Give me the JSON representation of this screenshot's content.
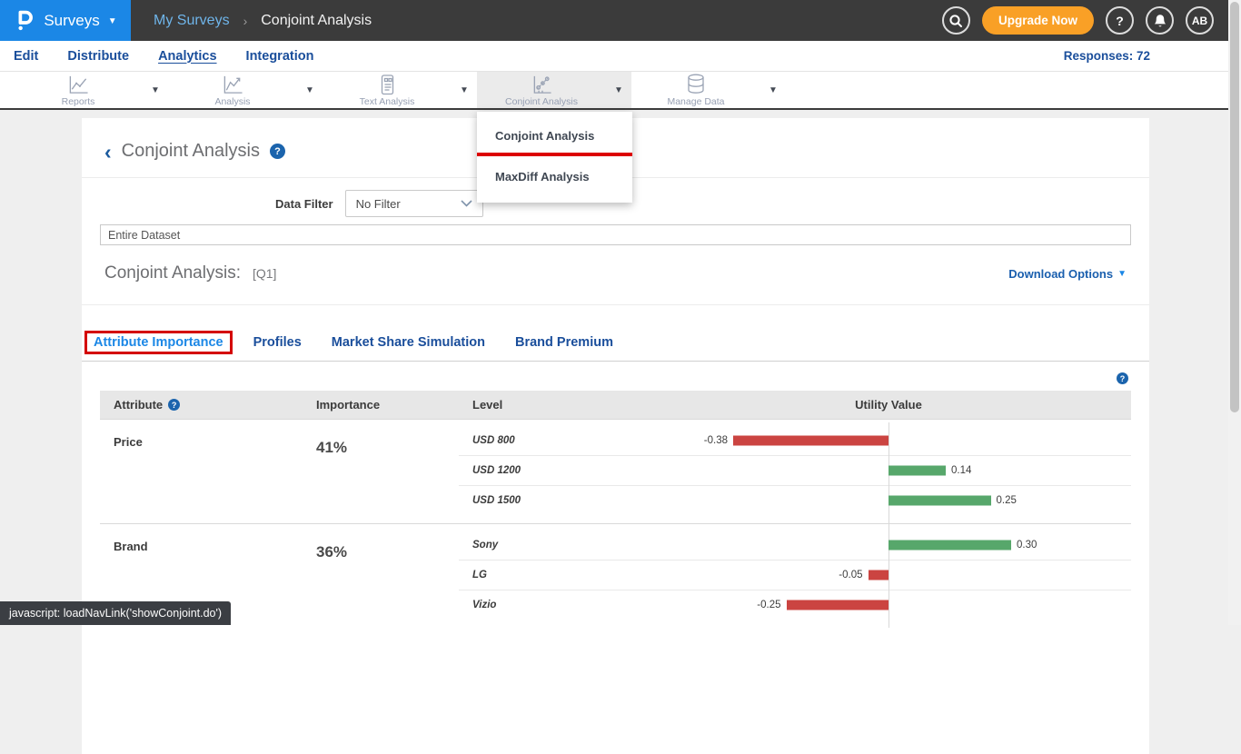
{
  "topbar": {
    "product": "Surveys",
    "breadcrumb": {
      "parent": "My Surveys",
      "separator": "›",
      "current": "Conjoint Analysis"
    },
    "upgrade_label": "Upgrade Now",
    "help_label": "?",
    "avatar": "AB"
  },
  "nav": {
    "items": [
      {
        "label": "Edit"
      },
      {
        "label": "Distribute"
      },
      {
        "label": "Analytics"
      },
      {
        "label": "Integration"
      }
    ],
    "active": "Analytics",
    "responses": "Responses: 72"
  },
  "toolbar": {
    "items": [
      {
        "label": "Reports",
        "icon": "line-chart-icon"
      },
      {
        "label": "Analysis",
        "icon": "trend-chart-icon"
      },
      {
        "label": "Text Analysis",
        "icon": "text-document-icon"
      },
      {
        "label": "Conjoint Analysis",
        "icon": "scatter-chart-icon",
        "active": true
      },
      {
        "label": "Manage Data",
        "icon": "database-icon"
      }
    ]
  },
  "dropdown": {
    "items": [
      {
        "label": "Conjoint Analysis",
        "annotated": true
      },
      {
        "label": "MaxDiff Analysis"
      }
    ]
  },
  "page": {
    "back_chevron": "‹",
    "title": "Conjoint Analysis",
    "filter_label": "Data Filter",
    "filter_value": "No Filter",
    "dataset_value": "Entire Dataset",
    "section_title": "Conjoint Analysis:",
    "section_ref": "[Q1]",
    "download_label": "Download Options",
    "tabs": [
      {
        "label": "Attribute Importance",
        "active": true,
        "annotated": true
      },
      {
        "label": "Profiles"
      },
      {
        "label": "Market Share Simulation"
      },
      {
        "label": "Brand Premium"
      }
    ]
  },
  "table": {
    "headers": {
      "attribute": "Attribute",
      "importance": "Importance",
      "level": "Level",
      "utility": "Utility Value"
    },
    "groups": [
      {
        "attribute": "Price",
        "importance": "41%",
        "levels": [
          {
            "name": "USD 800",
            "value": -0.38,
            "label": "-0.38"
          },
          {
            "name": "USD 1200",
            "value": 0.14,
            "label": "0.14"
          },
          {
            "name": "USD 1500",
            "value": 0.25,
            "label": "0.25"
          }
        ]
      },
      {
        "attribute": "Brand",
        "importance": "36%",
        "levels": [
          {
            "name": "Sony",
            "value": 0.3,
            "label": "0.30"
          },
          {
            "name": "LG",
            "value": -0.05,
            "label": "-0.05"
          },
          {
            "name": "Vizio",
            "value": -0.25,
            "label": "-0.25"
          }
        ]
      }
    ]
  },
  "chart_data": {
    "type": "bar",
    "orientation": "horizontal",
    "title": "Conjoint Analysis [Q1] — Attribute Importance & Utility Values",
    "value_axis_label": "Utility Value",
    "xlim": [
      -0.45,
      0.45
    ],
    "series": [
      {
        "name": "Price",
        "importance_pct": 41,
        "categories": [
          "USD 800",
          "USD 1200",
          "USD 1500"
        ],
        "values": [
          -0.38,
          0.14,
          0.25
        ]
      },
      {
        "name": "Brand",
        "importance_pct": 36,
        "categories": [
          "Sony",
          "LG",
          "Vizio"
        ],
        "values": [
          0.3,
          -0.05,
          -0.25
        ]
      }
    ],
    "positive_color": "#57a76b",
    "negative_color": "#cb4441"
  },
  "statusbar": {
    "text": "javascript: loadNavLink('showConjoint.do')"
  },
  "colors": {
    "accent_blue": "#1b87e6",
    "nav_blue": "#1a4e9b",
    "upgrade_orange": "#f9a026",
    "positive_bar": "#57a76b",
    "negative_bar": "#cb4441",
    "annotation_red": "#d40000",
    "topbar_dark": "#3b3b3b"
  }
}
